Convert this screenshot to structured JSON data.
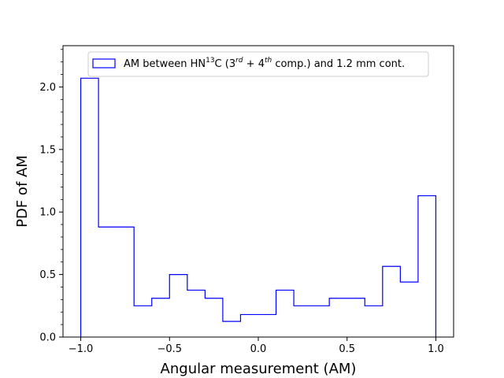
{
  "chart_data": {
    "type": "histogram",
    "xlabel": "Angular measurement (AM)",
    "ylabel": "PDF of AM",
    "xlim": [
      -1.1,
      1.1
    ],
    "ylim": [
      0,
      2.33
    ],
    "x_ticks": [
      -1.0,
      -0.5,
      0.0,
      0.5,
      1.0
    ],
    "x_tick_labels": [
      "−1.0",
      "−0.5",
      "0.0",
      "0.5",
      "1.0"
    ],
    "y_ticks": [
      0.0,
      0.5,
      1.0,
      1.5,
      2.0
    ],
    "y_tick_labels": [
      "0.0",
      "0.5",
      "1.0",
      "1.5",
      "2.0"
    ],
    "bin_edges": [
      -1.0,
      -0.9,
      -0.8,
      -0.7,
      -0.6,
      -0.5,
      -0.4,
      -0.3,
      -0.2,
      -0.1,
      0.0,
      0.1,
      0.2,
      0.3,
      0.4,
      0.5,
      0.6,
      0.7,
      0.8,
      0.9,
      1.0
    ],
    "values": [
      2.07,
      0.88,
      0.88,
      0.25,
      0.31,
      0.5,
      0.375,
      0.31,
      0.125,
      0.18,
      0.18,
      0.375,
      0.25,
      0.25,
      0.31,
      0.31,
      0.25,
      0.565,
      0.44,
      1.13
    ],
    "color": "#0000ff",
    "legend": {
      "placement": "upper center",
      "label_parts": {
        "a": "AM between HN",
        "sup13": "13",
        "b": "C (3",
        "sup_rd": "rd",
        "c": " + 4",
        "sup_th": "th",
        "d": " comp.) and 1.2 mm cont."
      }
    },
    "grid": false
  }
}
